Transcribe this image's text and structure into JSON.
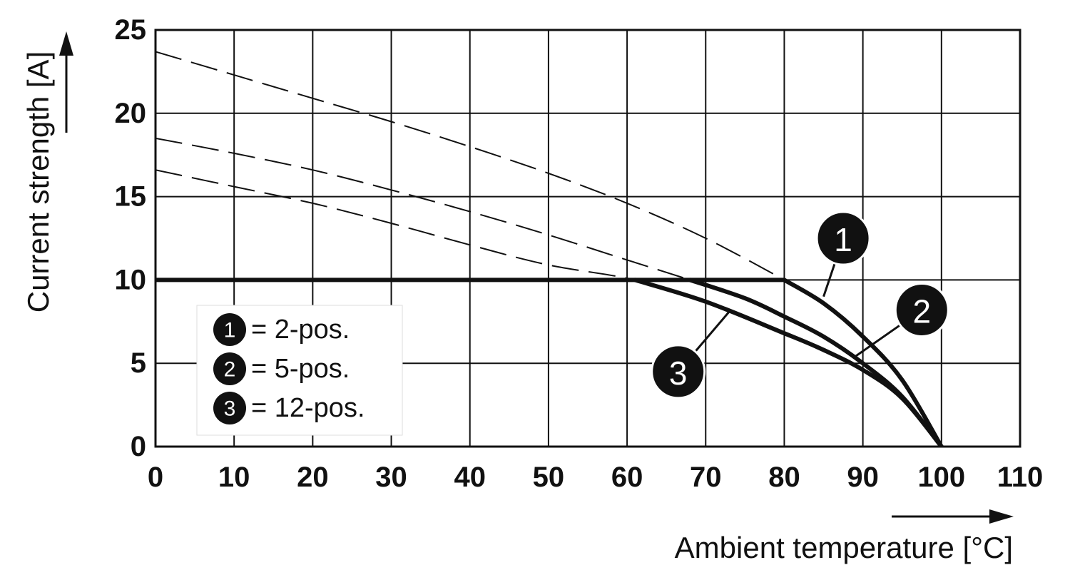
{
  "chart_data": {
    "type": "line",
    "xlabel": "Ambient temperature [°C]",
    "ylabel": "Current strength [A]",
    "xlim": [
      0,
      110
    ],
    "ylim": [
      0,
      25
    ],
    "x_ticks": [
      0,
      10,
      20,
      30,
      40,
      50,
      60,
      70,
      80,
      90,
      100,
      110
    ],
    "y_ticks": [
      0,
      5,
      10,
      15,
      20,
      25
    ],
    "grid": true,
    "cap_line": {
      "y": 10,
      "x_range": [
        0,
        80
      ]
    },
    "series": [
      {
        "name": "2-pos.",
        "badge": "1",
        "x": [
          0,
          10,
          20,
          30,
          40,
          50,
          60,
          70,
          80,
          85,
          90,
          95,
          100
        ],
        "y": [
          23.7,
          22.3,
          20.9,
          19.5,
          18.0,
          16.4,
          14.6,
          12.5,
          10.0,
          8.6,
          6.6,
          4.0,
          0
        ],
        "rated_from_x": 80
      },
      {
        "name": "5-pos.",
        "badge": "2",
        "x": [
          0,
          10,
          20,
          30,
          40,
          50,
          60,
          68,
          75,
          80,
          85,
          90,
          95,
          100
        ],
        "y": [
          18.5,
          17.6,
          16.6,
          15.4,
          14.1,
          12.7,
          11.2,
          10.0,
          8.9,
          7.8,
          6.6,
          5.0,
          3.0,
          0
        ],
        "rated_from_x": 68
      },
      {
        "name": "12-pos.",
        "badge": "3",
        "x": [
          0,
          10,
          20,
          30,
          40,
          50,
          61,
          70,
          80,
          85,
          90,
          95,
          100
        ],
        "y": [
          16.6,
          15.6,
          14.6,
          13.4,
          12.1,
          10.9,
          10.0,
          8.7,
          6.8,
          5.8,
          4.6,
          2.9,
          0
        ],
        "rated_from_x": 61
      }
    ],
    "callouts": [
      {
        "badge": "1",
        "label_at": [
          87.5,
          12.5
        ],
        "leader_to": [
          85,
          9.0
        ]
      },
      {
        "badge": "2",
        "label_at": [
          97.5,
          8.2
        ],
        "leader_to": [
          89,
          5.4
        ]
      },
      {
        "badge": "3",
        "label_at": [
          66.5,
          4.5
        ],
        "leader_to": [
          73,
          8.1
        ]
      }
    ],
    "legend": {
      "position": "bottom-left",
      "entries": [
        {
          "badge": "1",
          "text": "= 2-pos."
        },
        {
          "badge": "2",
          "text": "= 5-pos."
        },
        {
          "badge": "3",
          "text": "= 12-pos."
        }
      ]
    }
  }
}
